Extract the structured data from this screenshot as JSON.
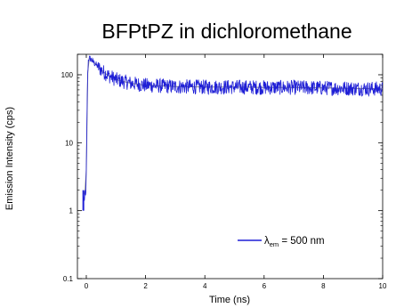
{
  "chart_data": {
    "type": "line",
    "title": "BFPtPZ in dichloromethane",
    "xlabel": "Time (ns)",
    "ylabel": "Emission Intensity (cps)",
    "xlim": [
      -0.3,
      10
    ],
    "ylim": [
      0.1,
      200
    ],
    "y_scale": "log",
    "x_ticks": [
      "0",
      "2",
      "4",
      "6",
      "8",
      "10"
    ],
    "y_ticks": [
      "0.1",
      "1",
      "10",
      "100"
    ],
    "grid": false,
    "legend_position": "bottom-right",
    "series": [
      {
        "name": "λem = 500 nm",
        "legend_main": "λ",
        "legend_sub": "em",
        "legend_rest": " = 500 nm",
        "color": "#1f1fd6",
        "x": [
          -0.1,
          -0.07,
          -0.04,
          -0.02,
          0.0,
          0.02,
          0.04,
          0.07,
          0.1,
          0.15,
          0.2,
          0.3,
          0.4,
          0.5,
          0.7,
          1.0,
          1.5,
          2.0,
          3.0,
          4.0,
          5.0,
          6.0,
          7.0,
          8.0,
          9.0,
          10.0
        ],
        "y": [
          2,
          1.3,
          2,
          1.5,
          4,
          20,
          90,
          170,
          175,
          170,
          160,
          145,
          130,
          118,
          100,
          85,
          75,
          70,
          67,
          66,
          66,
          65,
          65,
          64,
          63,
          62
        ]
      }
    ]
  }
}
